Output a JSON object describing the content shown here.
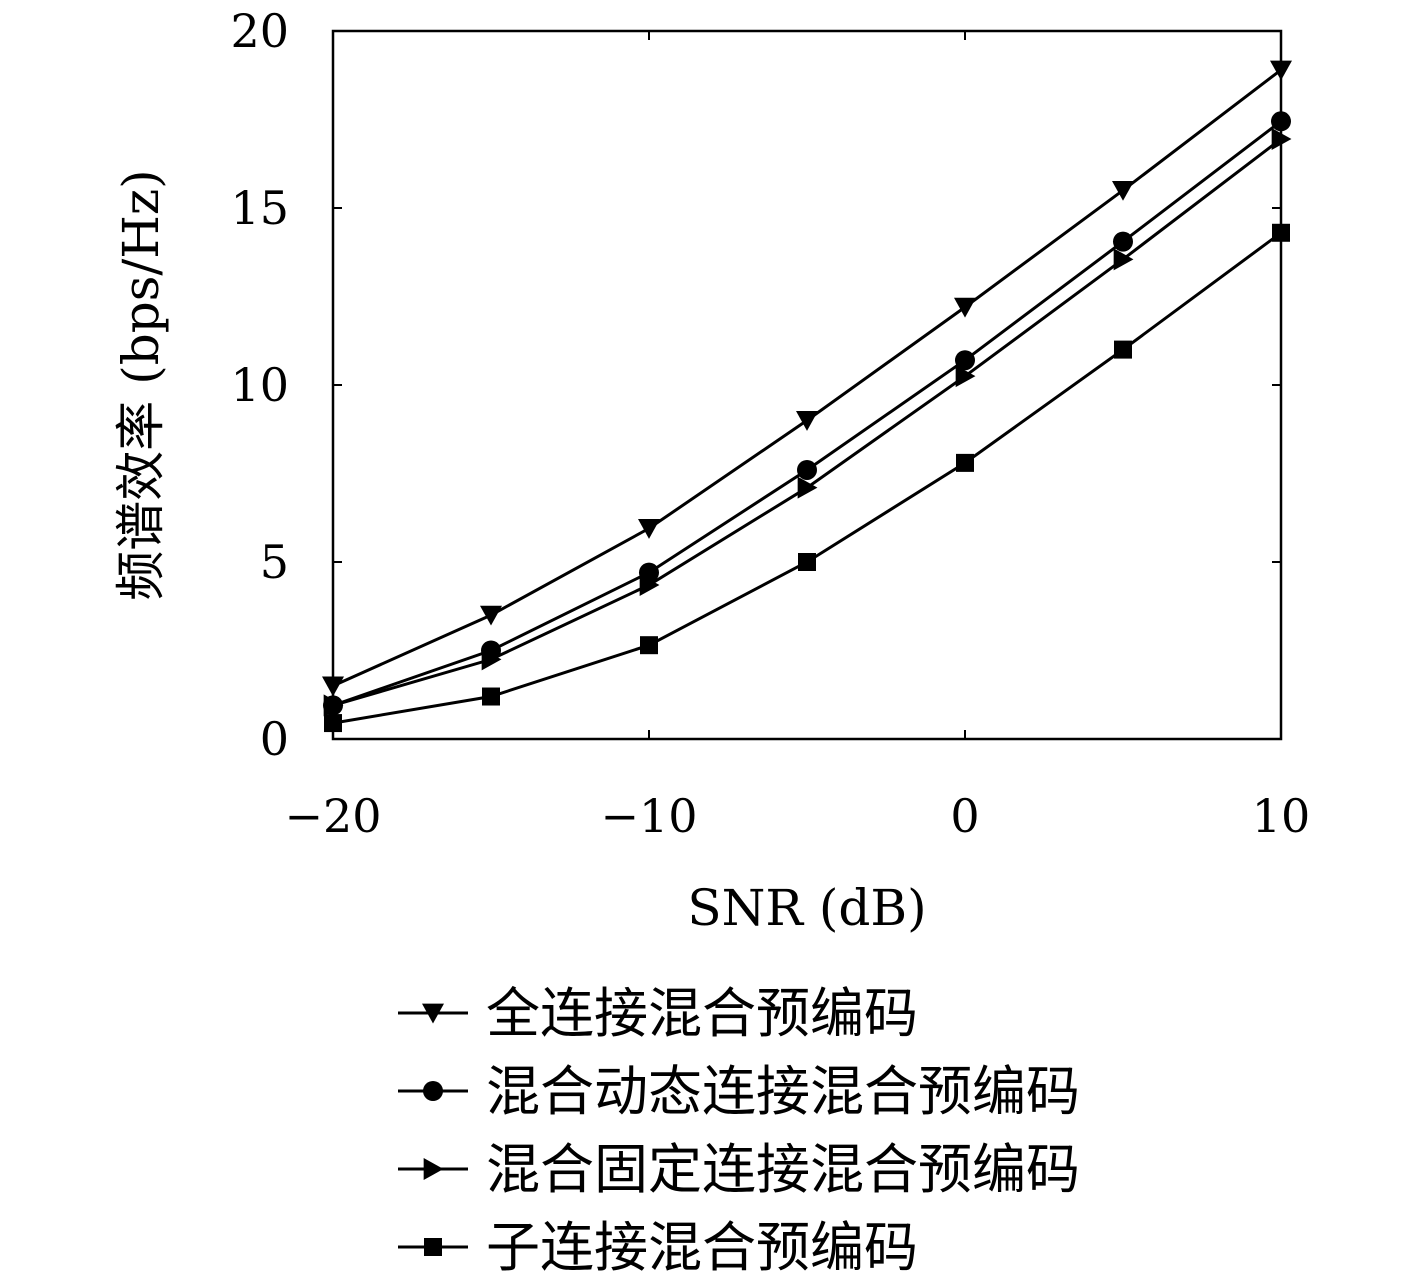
{
  "chart_data": {
    "type": "line",
    "title": "",
    "xlabel": "SNR (dB)",
    "ylabel": "频谱效率 (bps/Hz)",
    "xlim": [
      -20,
      10
    ],
    "ylim": [
      0,
      20
    ],
    "xticks": [
      -20,
      -10,
      0,
      10
    ],
    "yticks": [
      0,
      5,
      10,
      15,
      20
    ],
    "xtick_labels": [
      "−20",
      "−10",
      "0",
      "10"
    ],
    "ytick_labels": [
      "0",
      "5",
      "10",
      "15",
      "20"
    ],
    "grid": false,
    "legend_position": "bottom",
    "x": [
      -20,
      -15,
      -10,
      -5,
      0,
      5,
      10
    ],
    "series": [
      {
        "name": "全连接混合预编码",
        "marker": "triangle-down",
        "color": "#000000",
        "values": [
          1.5,
          3.5,
          5.95,
          9.0,
          12.2,
          15.5,
          18.9
        ]
      },
      {
        "name": "混合动态连接混合预编码",
        "marker": "circle",
        "color": "#000000",
        "values": [
          0.95,
          2.5,
          4.7,
          7.6,
          10.7,
          14.05,
          17.45
        ]
      },
      {
        "name": "混合固定连接混合预编码",
        "marker": "triangle-right",
        "color": "#000000",
        "values": [
          0.95,
          2.25,
          4.35,
          7.1,
          10.25,
          13.55,
          16.95
        ]
      },
      {
        "name": "子连接混合预编码",
        "marker": "square",
        "color": "#000000",
        "values": [
          0.45,
          1.2,
          2.65,
          5.0,
          7.8,
          11.0,
          14.3
        ]
      }
    ]
  }
}
